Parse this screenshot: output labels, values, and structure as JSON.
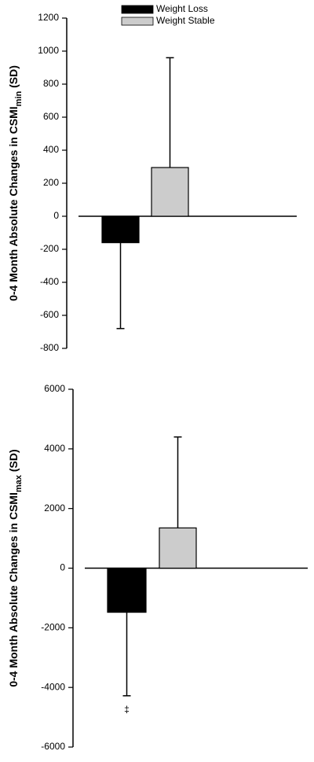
{
  "chart_data": [
    {
      "type": "bar",
      "y_label": [
        "0-4 Month Absolute Changes in CSMI",
        "min",
        " (SD)"
      ],
      "series": [
        {
          "name": "Weight Loss",
          "color": "#000000",
          "values": [
            -160
          ],
          "errors": [
            520
          ]
        },
        {
          "name": "Weight Stable",
          "color": "#cccccc",
          "values": [
            295
          ],
          "errors": [
            665
          ]
        }
      ],
      "ylim": [
        -800,
        1200
      ],
      "yticks": [
        -800,
        -600,
        -400,
        -200,
        0,
        200,
        400,
        600,
        800,
        1000,
        1200
      ],
      "legend": "top"
    },
    {
      "type": "bar",
      "y_label": [
        "0-4 Month Absolute Changes in CSMI",
        "max",
        " (SD)"
      ],
      "series": [
        {
          "color": "#000000",
          "values": [
            -1480
          ],
          "errors": [
            2800
          ]
        },
        {
          "color": "#cccccc",
          "values": [
            1350
          ],
          "errors": [
            3050
          ]
        }
      ],
      "ylim": [
        -6000,
        6000
      ],
      "yticks": [
        -6000,
        -4000,
        -2000,
        0,
        2000,
        4000,
        6000
      ],
      "annotation": "‡"
    }
  ]
}
